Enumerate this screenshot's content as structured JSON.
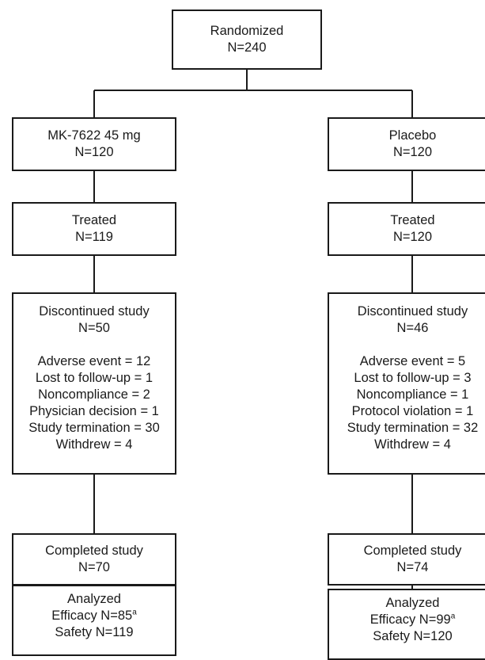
{
  "randomized": {
    "title": "Randomized",
    "n": "N=240"
  },
  "left": {
    "arm": {
      "title": "MK-7622 45 mg",
      "n": "N=120"
    },
    "treated": {
      "title": "Treated",
      "n": "N=119"
    },
    "discontinued": {
      "title": "Discontinued study",
      "n": "N=50",
      "reasons": [
        "Adverse event = 12",
        "Lost to follow-up = 1",
        "Noncompliance = 2",
        "Physician decision = 1",
        "Study termination = 30",
        "Withdrew = 4"
      ]
    },
    "completed": {
      "title": "Completed study",
      "n": "N=70"
    },
    "analyzed": {
      "title": "Analyzed",
      "efficacy": "Efficacy N=85",
      "footnote": "a",
      "safety": "Safety N=119"
    }
  },
  "right": {
    "arm": {
      "title": "Placebo",
      "n": "N=120"
    },
    "treated": {
      "title": "Treated",
      "n": "N=120"
    },
    "discontinued": {
      "title": "Discontinued study",
      "n": "N=46",
      "reasons": [
        "Adverse event = 5",
        "Lost to follow-up = 3",
        "Noncompliance = 1",
        "Protocol violation = 1",
        "Study termination = 32",
        "Withdrew = 4"
      ]
    },
    "completed": {
      "title": "Completed study",
      "n": "N=74"
    },
    "analyzed": {
      "title": "Analyzed",
      "efficacy": "Efficacy N=99",
      "footnote": "a",
      "safety": "Safety N=120"
    }
  }
}
